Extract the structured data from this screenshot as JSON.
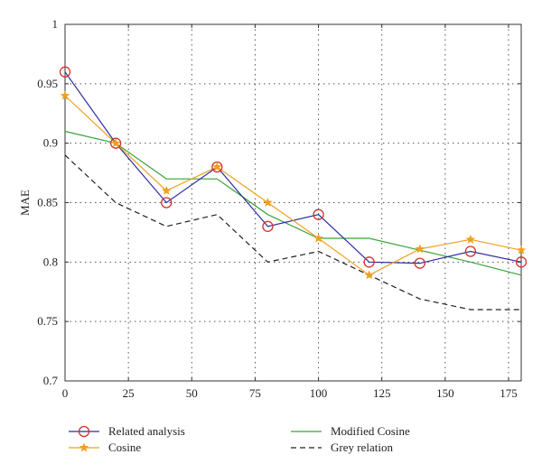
{
  "chart_data": {
    "type": "line",
    "title": "",
    "xlabel": "",
    "ylabel": "MAE",
    "xlim": [
      0,
      180
    ],
    "ylim": [
      0.7,
      1.0
    ],
    "x_ticks": [
      0,
      25,
      50,
      75,
      100,
      125,
      150,
      175
    ],
    "y_ticks": [
      0.7,
      0.75,
      0.8,
      0.85,
      0.9,
      0.95,
      1.0
    ],
    "x_tick_labels": [
      "0",
      "25",
      "50",
      "75",
      "100",
      "125",
      "150",
      "175"
    ],
    "y_tick_labels": [
      "0.7",
      "0.75",
      "0.8",
      "0.85",
      "0.9",
      "0.95",
      "1"
    ],
    "grid": true,
    "legend_position": "bottom",
    "x": [
      0,
      20,
      40,
      60,
      80,
      100,
      120,
      140,
      160,
      180
    ],
    "series": [
      {
        "name": "Related analysis",
        "values": [
          0.96,
          0.9,
          0.85,
          0.88,
          0.83,
          0.84,
          0.8,
          0.799,
          0.809,
          0.8
        ],
        "color": "#2b2b9e",
        "marker": "circle",
        "marker_color": "#d0312d",
        "dash": "solid"
      },
      {
        "name": "Cosine",
        "values": [
          0.94,
          0.9,
          0.86,
          0.88,
          0.85,
          0.82,
          0.789,
          0.811,
          0.819,
          0.81
        ],
        "color": "#f0a020",
        "marker": "star",
        "marker_color": "#f0a020",
        "dash": "solid"
      },
      {
        "name": "Modified Cosine",
        "values": [
          0.91,
          0.9,
          0.87,
          0.87,
          0.84,
          0.82,
          0.82,
          0.81,
          0.8,
          0.789
        ],
        "color": "#3aa43a",
        "marker": "none",
        "marker_color": "#3aa43a",
        "dash": "solid"
      },
      {
        "name": "Grey relation",
        "values": [
          0.89,
          0.85,
          0.83,
          0.84,
          0.8,
          0.809,
          0.789,
          0.769,
          0.76,
          0.76
        ],
        "color": "#222222",
        "marker": "none",
        "marker_color": "#222222",
        "dash": "dashed"
      }
    ]
  }
}
